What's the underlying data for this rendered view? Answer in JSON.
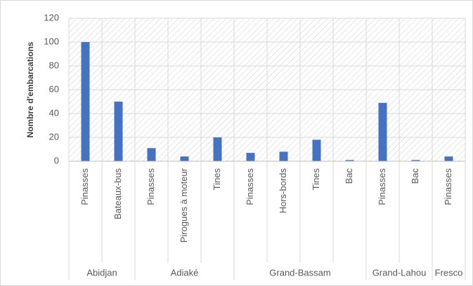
{
  "chart_data": {
    "type": "bar",
    "y_label": "Nombre d'embarcations",
    "color": "#4472c4",
    "ylim": [
      0,
      120
    ],
    "yticks": [
      0,
      20,
      40,
      60,
      80,
      100,
      120
    ],
    "grid": true,
    "groups": [
      {
        "name": "Abidjan",
        "categories": [
          "Pinasses",
          "Bateaux-bus"
        ],
        "values": [
          100,
          50
        ]
      },
      {
        "name": "Adiaké",
        "categories": [
          "Pinasses",
          "Pirogues à moteur",
          "Tines"
        ],
        "values": [
          11,
          4,
          20
        ]
      },
      {
        "name": "Grand-Bassam",
        "categories": [
          "Pinasses",
          "Hors-bords",
          "Tines",
          "Bac"
        ],
        "values": [
          7,
          8,
          18,
          1
        ]
      },
      {
        "name": "Grand-Lahou",
        "categories": [
          "Pinasses",
          "Bac"
        ],
        "values": [
          49,
          1
        ]
      },
      {
        "name": "Fresco",
        "categories": [
          "Pinasses"
        ],
        "values": [
          4
        ]
      }
    ]
  }
}
